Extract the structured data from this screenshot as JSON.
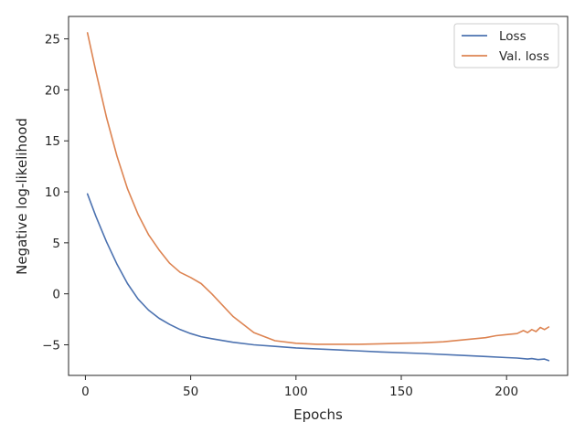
{
  "chart_data": {
    "type": "line",
    "title": "",
    "xlabel": "Epochs",
    "ylabel": "Negative log-likelihood",
    "xlim": [
      -8,
      229
    ],
    "ylim": [
      -8,
      27.2
    ],
    "x_ticks": [
      0,
      50,
      100,
      150,
      200
    ],
    "x_tick_labels": [
      "0",
      "50",
      "100",
      "150",
      "200"
    ],
    "y_ticks": [
      -5,
      0,
      5,
      10,
      15,
      20,
      25
    ],
    "y_tick_labels": [
      "−5",
      "0",
      "5",
      "10",
      "15",
      "20",
      "25"
    ],
    "grid": false,
    "legend_position": "top-right",
    "series": [
      {
        "name": "Loss",
        "color": "#4c72b0",
        "x": [
          1,
          5,
          10,
          15,
          20,
          25,
          30,
          35,
          40,
          45,
          50,
          55,
          60,
          70,
          80,
          90,
          100,
          120,
          140,
          160,
          180,
          190,
          200,
          205,
          210,
          212,
          215,
          218,
          220
        ],
        "y": [
          9.8,
          7.6,
          5.1,
          2.9,
          1.0,
          -0.5,
          -1.6,
          -2.4,
          -3.0,
          -3.5,
          -3.9,
          -4.2,
          -4.4,
          -4.75,
          -5.0,
          -5.15,
          -5.3,
          -5.5,
          -5.7,
          -5.85,
          -6.05,
          -6.15,
          -6.25,
          -6.3,
          -6.4,
          -6.35,
          -6.45,
          -6.4,
          -6.55
        ]
      },
      {
        "name": "Val. loss",
        "color": "#dd8452",
        "x": [
          1,
          5,
          10,
          15,
          20,
          25,
          30,
          35,
          40,
          45,
          50,
          55,
          60,
          70,
          80,
          90,
          100,
          110,
          120,
          130,
          140,
          150,
          160,
          170,
          180,
          190,
          195,
          200,
          205,
          208,
          210,
          212,
          214,
          216,
          218,
          220
        ],
        "y": [
          25.6,
          21.8,
          17.3,
          13.5,
          10.3,
          7.8,
          5.8,
          4.3,
          3.0,
          2.1,
          1.6,
          1.0,
          0.0,
          -2.2,
          -3.8,
          -4.6,
          -4.85,
          -4.95,
          -4.95,
          -4.95,
          -4.9,
          -4.85,
          -4.8,
          -4.7,
          -4.5,
          -4.3,
          -4.1,
          -4.0,
          -3.9,
          -3.6,
          -3.8,
          -3.5,
          -3.7,
          -3.3,
          -3.5,
          -3.25
        ]
      }
    ]
  }
}
